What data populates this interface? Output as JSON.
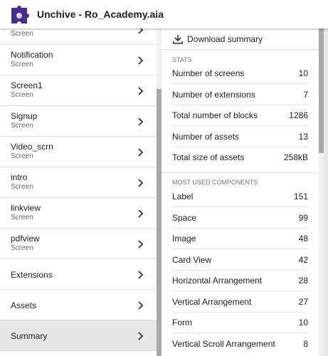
{
  "header": {
    "title": "Unchive - Ro_Academy.aia"
  },
  "sidebar": {
    "items": [
      {
        "subtitle": "Screen"
      },
      {
        "title": "Notification",
        "subtitle": "Screen"
      },
      {
        "title": "Screen1",
        "subtitle": "Screen"
      },
      {
        "title": "Signup",
        "subtitle": "Screen"
      },
      {
        "title": "Video_scrn",
        "subtitle": "Screen"
      },
      {
        "title": "intro",
        "subtitle": "Screen"
      },
      {
        "title": "linkview",
        "subtitle": "Screen"
      },
      {
        "title": "pdfview",
        "subtitle": "Screen"
      },
      {
        "title": "Extensions"
      },
      {
        "title": "Assets"
      },
      {
        "title": "Summary"
      }
    ]
  },
  "summary": {
    "download": "Download summary",
    "stats": {
      "heading": "STATS",
      "rows": [
        {
          "label": "Number of screens",
          "value": 10
        },
        {
          "label": "Number of extensions",
          "value": 7
        },
        {
          "label": "Total number of blocks",
          "value": 1286
        },
        {
          "label": "Number of assets",
          "value": 13
        },
        {
          "label": "Total size of assets",
          "value": "258kB"
        }
      ]
    },
    "components": {
      "heading": "MOST USED COMPONENTS",
      "rows": [
        {
          "label": "Label",
          "value": 151
        },
        {
          "label": "Space",
          "value": 99
        },
        {
          "label": "Image",
          "value": 48
        },
        {
          "label": "Card View",
          "value": 42
        },
        {
          "label": "Horizontal Arrangement",
          "value": 28
        },
        {
          "label": "Vertical Arrangement",
          "value": 27
        },
        {
          "label": "Form",
          "value": 10
        },
        {
          "label": "Vertical Scroll Arrangement",
          "value": 8
        }
      ]
    }
  }
}
